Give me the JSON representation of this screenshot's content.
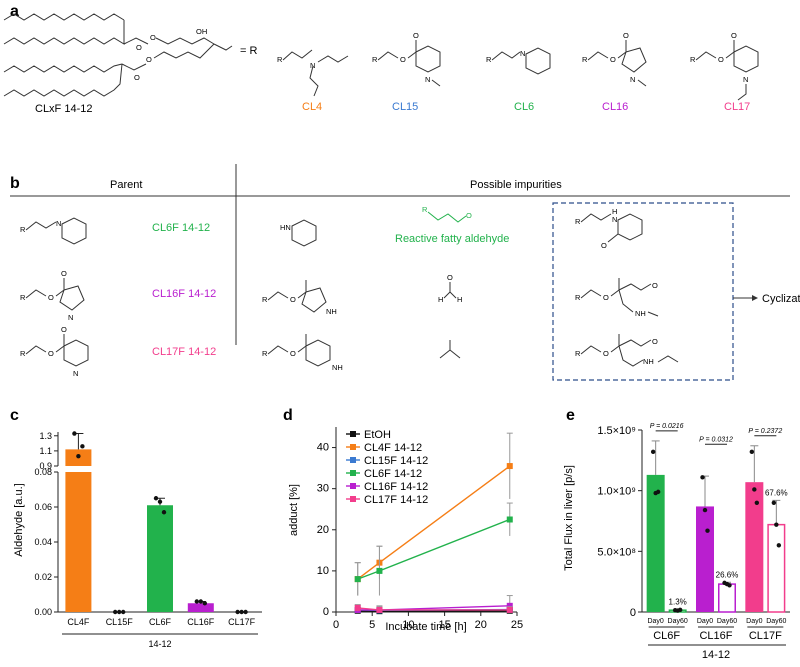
{
  "panel_letters": {
    "a": "a",
    "b": "b",
    "c": "c",
    "d": "d",
    "e": "e"
  },
  "colors": {
    "CL4": "#f57e16",
    "CL15": "#3a7ad1",
    "CL6": "#22b24c",
    "CL16": "#b91fcf",
    "CL17": "#f23d8c",
    "EtOH": "#111111",
    "aldehyde": "#22b24c"
  },
  "panel_a": {
    "scaffold_label": "CLxF 14-12",
    "oh": "OH",
    "r_equals": "= R",
    "head_labels": [
      "CL4",
      "CL15",
      "CL6",
      "CL16",
      "CL17"
    ],
    "atoms": {
      "R": "R",
      "N": "N",
      "O": "O"
    }
  },
  "panel_b": {
    "parent_header": "Parent",
    "impurities_header": "Possible impurities",
    "parents": [
      "CL6F 14-12",
      "CL16F 14-12",
      "CL17F 14-12"
    ],
    "aldehyde_label": "Reactive fatty aldehyde",
    "cyclization": "Cyclization",
    "atoms": {
      "R": "R",
      "HN": "HN",
      "NH": "NH",
      "H": "H",
      "N": "N",
      "O": "O"
    }
  },
  "chart_data": [
    {
      "panel": "c",
      "type": "bar",
      "categories": [
        "CL4F",
        "CL15F",
        "CL6F",
        "CL16F",
        "CL17F"
      ],
      "values": [
        1.12,
        0.0,
        0.061,
        0.005,
        0.0
      ],
      "points": [
        [
          1.33,
          1.03,
          1.16
        ],
        [
          0.0,
          0.0,
          0.0
        ],
        [
          0.065,
          0.063,
          0.057
        ],
        [
          0.006,
          0.006,
          0.005
        ],
        [
          0.0,
          0.0,
          0.0
        ]
      ],
      "error_up": [
        1.33,
        null,
        0.065,
        0.006,
        null
      ],
      "ylabel": "Aldehyde [a.u.]",
      "xgroup": "14-12",
      "broken_axis": true,
      "lower_ticks": [
        "0.00",
        "0.02",
        "0.04",
        "0.06",
        "0.08"
      ],
      "upper_ticks": [
        "0.9",
        "1.1",
        "1.3"
      ],
      "ylim_lower": [
        0,
        0.08
      ],
      "ylim_upper": [
        0.9,
        1.35
      ]
    },
    {
      "panel": "d",
      "type": "line",
      "x": [
        3,
        6,
        24
      ],
      "xlabel": "Incubate time [h]",
      "ylabel": "adduct [%]",
      "xticks": [
        "0",
        "5",
        "10",
        "15",
        "20",
        "25"
      ],
      "yticks": [
        "0",
        "10",
        "20",
        "30",
        "40"
      ],
      "xlim": [
        0,
        25
      ],
      "ylim": [
        0,
        45
      ],
      "legend_position": "top-left",
      "series": [
        {
          "name": "EtOH",
          "values": [
            0.3,
            0.2,
            0.3
          ],
          "err": [
            0.3,
            0.3,
            0.3
          ]
        },
        {
          "name": "CL4F 14-12",
          "values": [
            8,
            12,
            35.5
          ],
          "err": [
            4,
            4,
            8
          ]
        },
        {
          "name": "CL15F 14-12",
          "values": [
            0.5,
            0.4,
            0.6
          ],
          "err": [
            0.5,
            0.5,
            0.5
          ]
        },
        {
          "name": "CL6F 14-12",
          "values": [
            8,
            10,
            22.5
          ],
          "err": [
            4,
            6,
            4
          ]
        },
        {
          "name": "CL16F 14-12",
          "values": [
            0.5,
            0.5,
            1.5
          ],
          "err": [
            1,
            1,
            2.5
          ]
        },
        {
          "name": "CL17F 14-12",
          "values": [
            1,
            0.5,
            0.5
          ],
          "err": [
            0.8,
            0.8,
            0.8
          ]
        }
      ]
    },
    {
      "panel": "e",
      "type": "bar",
      "ylabel": "Total Flux in liver [p/s]",
      "yticks": [
        "0",
        "5.0×10⁸",
        "1.0×10⁹",
        "1.5×10⁹"
      ],
      "ylim": [
        0,
        1500000000.0
      ],
      "xgroup": "14-12",
      "groups": [
        {
          "name": "CL6F",
          "p": "P = 0.0216",
          "pct": "1.3%",
          "bars": [
            {
              "label": "Day0",
              "value": 1130000000.0,
              "err": 280000000.0,
              "points": [
                1320000000.0,
                980000000.0,
                990000000.0
              ],
              "filled": true
            },
            {
              "label": "Day60",
              "value": 15000000.0,
              "err": 5000000.0,
              "points": [
                15000000.0,
                12000000.0,
                18000000.0
              ],
              "filled": false
            }
          ]
        },
        {
          "name": "CL16F",
          "p": "P = 0.0312",
          "pct": "26.6%",
          "bars": [
            {
              "label": "Day0",
              "value": 870000000.0,
              "err": 250000000.0,
              "points": [
                1110000000.0,
                840000000.0,
                670000000.0
              ],
              "filled": true
            },
            {
              "label": "Day60",
              "value": 230000000.0,
              "err": 15000000.0,
              "points": [
                240000000.0,
                230000000.0,
                220000000.0
              ],
              "filled": false
            }
          ]
        },
        {
          "name": "CL17F",
          "p": "P = 0.2372",
          "pct": "67.6%",
          "bars": [
            {
              "label": "Day0",
              "value": 1070000000.0,
              "err": 300000000.0,
              "points": [
                1320000000.0,
                1010000000.0,
                900000000.0
              ],
              "filled": true
            },
            {
              "label": "Day60",
              "value": 720000000.0,
              "err": 200000000.0,
              "points": [
                900000000.0,
                720000000.0,
                550000000.0
              ],
              "filled": false
            }
          ]
        }
      ]
    }
  ]
}
